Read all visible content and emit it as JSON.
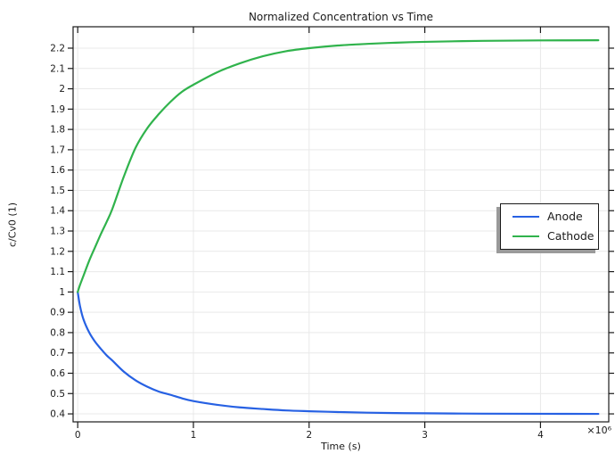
{
  "chart_data": {
    "type": "line",
    "title": "Normalized Concentration vs Time",
    "xlabel": "Time (s)",
    "ylabel": "c/Cv0 (1)",
    "x_multiplier": "×10⁶",
    "grid": true,
    "legend_position": "right-middle",
    "xlim": [
      -40000,
      4590000
    ],
    "ylim": [
      0.3607,
      2.3053
    ],
    "x_ticks": [
      {
        "value": 0,
        "label": "0"
      },
      {
        "value": 1000000,
        "label": "1"
      },
      {
        "value": 2000000,
        "label": "2"
      },
      {
        "value": 3000000,
        "label": "3"
      },
      {
        "value": 4000000,
        "label": "4"
      }
    ],
    "y_ticks": [
      {
        "value": 0.4,
        "label": "0.4"
      },
      {
        "value": 0.5,
        "label": "0.5"
      },
      {
        "value": 0.6,
        "label": "0.6"
      },
      {
        "value": 0.7,
        "label": "0.7"
      },
      {
        "value": 0.8,
        "label": "0.8"
      },
      {
        "value": 0.9,
        "label": "0.9"
      },
      {
        "value": 1.0,
        "label": "1"
      },
      {
        "value": 1.1,
        "label": "1.1"
      },
      {
        "value": 1.2,
        "label": "1.2"
      },
      {
        "value": 1.3,
        "label": "1.3"
      },
      {
        "value": 1.4,
        "label": "1.4"
      },
      {
        "value": 1.5,
        "label": "1.5"
      },
      {
        "value": 1.6,
        "label": "1.6"
      },
      {
        "value": 1.7,
        "label": "1.7"
      },
      {
        "value": 1.8,
        "label": "1.8"
      },
      {
        "value": 1.9,
        "label": "1.9"
      },
      {
        "value": 2.0,
        "label": "2"
      },
      {
        "value": 2.1,
        "label": "2.1"
      },
      {
        "value": 2.2,
        "label": "2.2"
      }
    ],
    "x": [
      0,
      20000,
      50000,
      100000,
      150000,
      200000,
      250000,
      300000,
      400000,
      500000,
      600000,
      700000,
      800000,
      900000,
      1000000,
      1200000,
      1400000,
      1600000,
      1800000,
      2000000,
      2250000,
      2500000,
      2750000,
      3000000,
      3500000,
      4000000,
      4500000
    ],
    "series": [
      {
        "name": "Anode",
        "color": "#2761e3",
        "values": [
          1.0,
          0.93,
          0.865,
          0.8,
          0.755,
          0.72,
          0.688,
          0.662,
          0.607,
          0.565,
          0.534,
          0.51,
          0.494,
          0.477,
          0.463,
          0.445,
          0.432,
          0.424,
          0.417,
          0.413,
          0.409,
          0.406,
          0.404,
          0.403,
          0.401,
          0.4005,
          0.4
        ]
      },
      {
        "name": "Cathode",
        "color": "#30b34c",
        "values": [
          1.0,
          1.035,
          1.08,
          1.155,
          1.22,
          1.285,
          1.345,
          1.41,
          1.57,
          1.71,
          1.805,
          1.875,
          1.935,
          1.985,
          2.02,
          2.08,
          2.125,
          2.16,
          2.185,
          2.2,
          2.213,
          2.221,
          2.227,
          2.231,
          2.236,
          2.238,
          2.239
        ]
      }
    ],
    "colors": {
      "grid": "#e9e9e9",
      "axis": "#1a1a1a",
      "text": "#1a1a1a",
      "background": "#ffffff",
      "legend_shadow": "#9a9a9a"
    }
  }
}
